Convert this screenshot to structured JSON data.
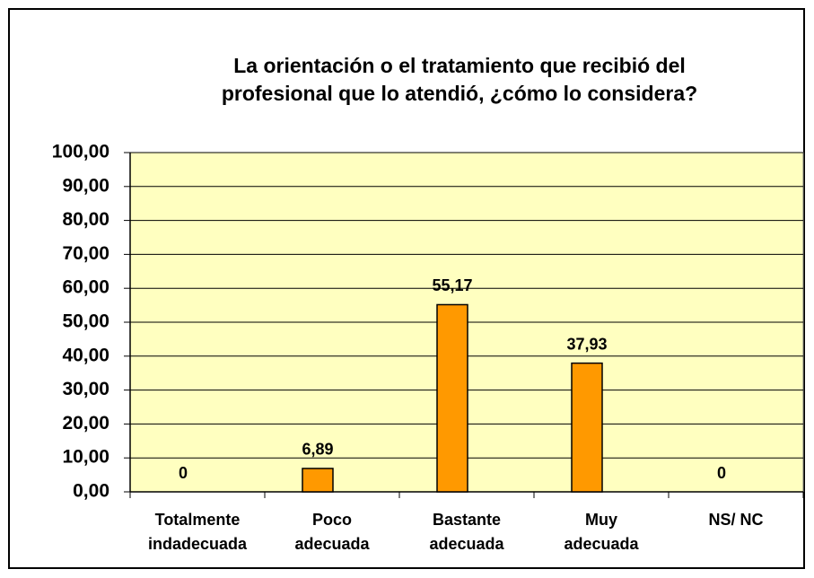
{
  "chart_data": {
    "type": "bar",
    "title": [
      "La orientación o el tratamiento que recibió del",
      "profesional que lo atendió, ¿cómo lo considera?"
    ],
    "categories": [
      "Totalmente\nindadecuada",
      "Poco\nadecuada",
      "Bastante\nadecuada",
      "Muy\nadecuada",
      "NS/ NC"
    ],
    "values": [
      0,
      6.89,
      55.17,
      37.93,
      0
    ],
    "value_labels": [
      "0",
      "6,89",
      "55,17",
      "37,93",
      "0"
    ],
    "color": "#ff9900",
    "ylim": [
      0,
      100
    ],
    "yticks": [
      {
        "value": 0,
        "label": "0,00"
      },
      {
        "value": 10,
        "label": "10,00"
      },
      {
        "value": 20,
        "label": "20,00"
      },
      {
        "value": 30,
        "label": "30,00"
      },
      {
        "value": 40,
        "label": "40,00"
      },
      {
        "value": 50,
        "label": "50,00"
      },
      {
        "value": 60,
        "label": "60,00"
      },
      {
        "value": 70,
        "label": "70,00"
      },
      {
        "value": 80,
        "label": "80,00"
      },
      {
        "value": 90,
        "label": "90,00"
      },
      {
        "value": 100,
        "label": "100,00"
      }
    ],
    "grid": true
  }
}
